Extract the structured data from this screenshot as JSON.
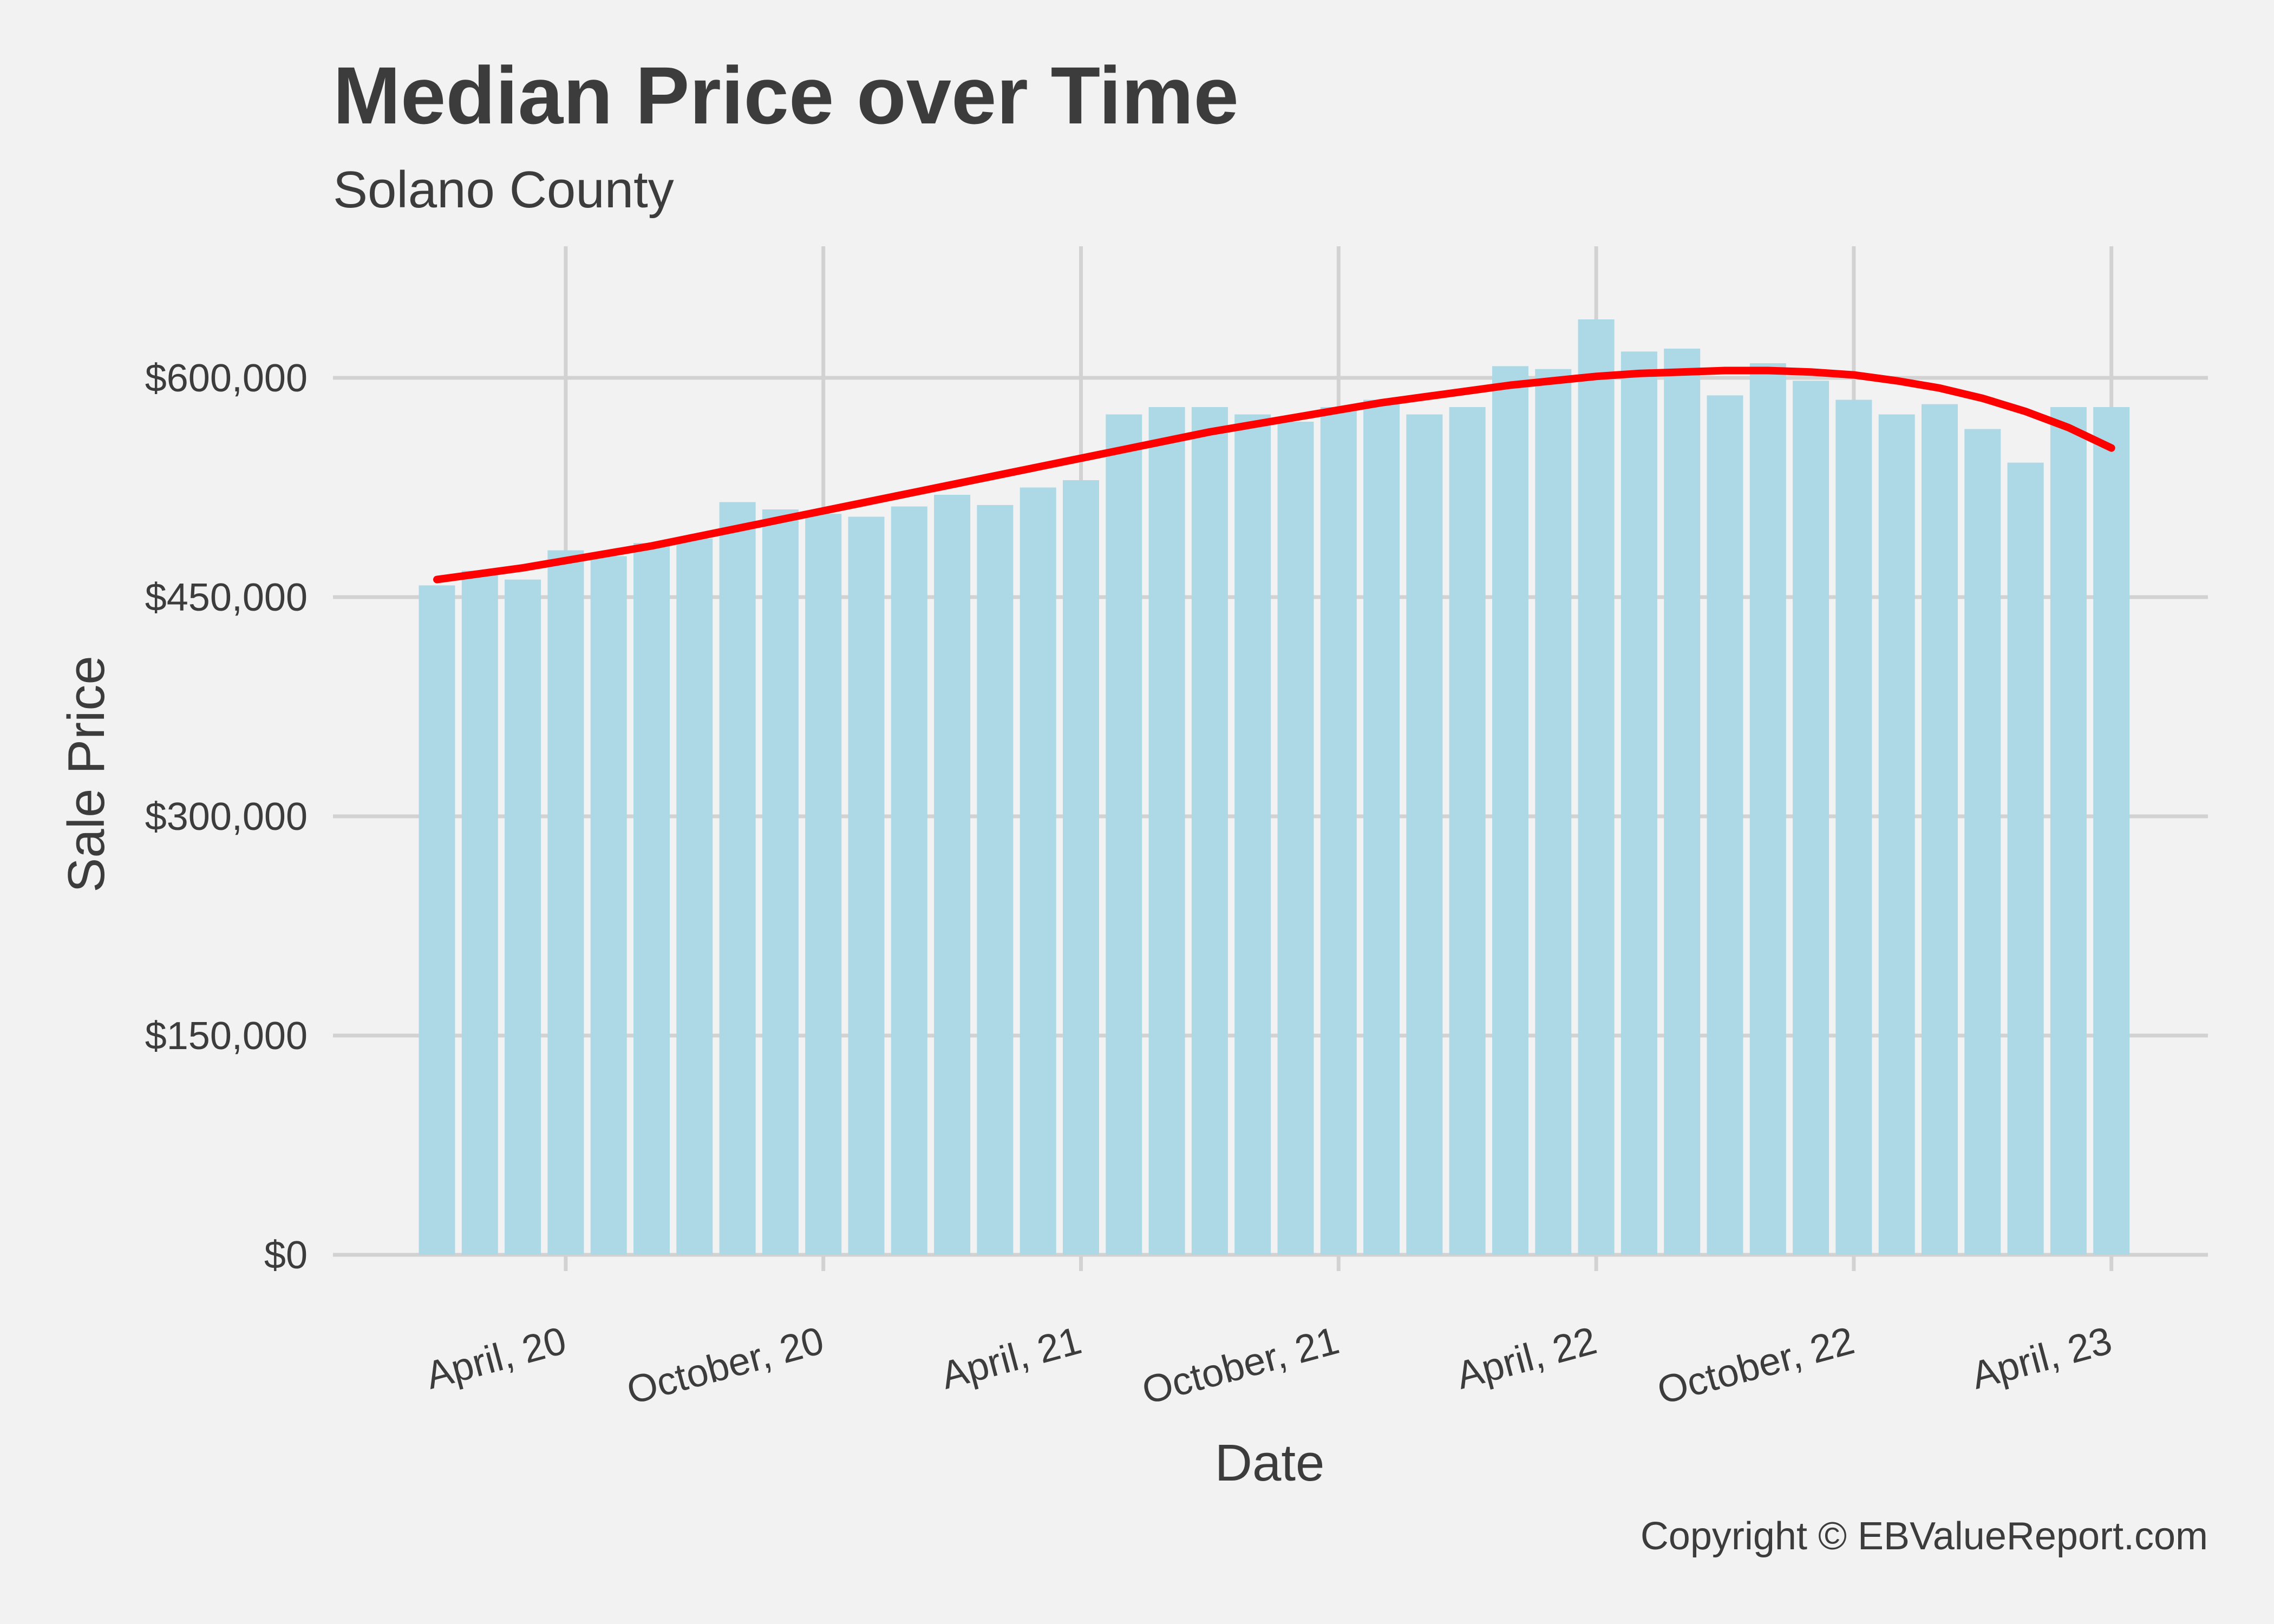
{
  "chart_data": {
    "type": "bar",
    "title": "Median Price over Time",
    "subtitle": "Solano County",
    "xlabel": "Date",
    "ylabel": "Sale Price",
    "caption": "Copyright  © EBValueReport.com",
    "ylim": [
      0,
      690000
    ],
    "y_ticks": [
      {
        "value": 0,
        "label": "$0"
      },
      {
        "value": 150000,
        "label": "$150,000"
      },
      {
        "value": 300000,
        "label": "$300,000"
      },
      {
        "value": 450000,
        "label": "$450,000"
      },
      {
        "value": 600000,
        "label": "$600,000"
      }
    ],
    "x_ticks": [
      {
        "date": "2020-04",
        "label": "April, 20"
      },
      {
        "date": "2020-10",
        "label": "October, 20"
      },
      {
        "date": "2021-04",
        "label": "April, 21"
      },
      {
        "date": "2021-10",
        "label": "October, 21"
      },
      {
        "date": "2022-04",
        "label": "April, 22"
      },
      {
        "date": "2022-10",
        "label": "October, 22"
      },
      {
        "date": "2023-04",
        "label": "April, 23"
      }
    ],
    "x": [
      "2020-01",
      "2020-02",
      "2020-03",
      "2020-04",
      "2020-05",
      "2020-06",
      "2020-07",
      "2020-08",
      "2020-09",
      "2020-10",
      "2020-11",
      "2020-12",
      "2021-01",
      "2021-02",
      "2021-03",
      "2021-04",
      "2021-05",
      "2021-06",
      "2021-07",
      "2021-08",
      "2021-09",
      "2021-10",
      "2021-11",
      "2021-12",
      "2022-01",
      "2022-02",
      "2022-03",
      "2022-04",
      "2022-05",
      "2022-06",
      "2022-07",
      "2022-08",
      "2022-09",
      "2022-10",
      "2022-11",
      "2022-12",
      "2023-01",
      "2023-02",
      "2023-03",
      "2023-04"
    ],
    "values": [
      458000,
      468000,
      462000,
      482000,
      478000,
      487000,
      490000,
      515000,
      510000,
      507000,
      505000,
      512000,
      520000,
      513000,
      525000,
      530000,
      575000,
      580000,
      580000,
      575000,
      570000,
      580000,
      585000,
      575000,
      580000,
      608000,
      606000,
      640000,
      618000,
      620000,
      588000,
      610000,
      598000,
      585000,
      575000,
      582000,
      565000,
      542000,
      580000,
      580000
    ],
    "trend": [
      462000,
      466000,
      470000,
      475000,
      480000,
      485000,
      491000,
      497000,
      503000,
      509000,
      515000,
      521000,
      527000,
      533000,
      539000,
      545000,
      551000,
      557000,
      563000,
      568000,
      573000,
      578000,
      583000,
      587000,
      591000,
      595000,
      598000,
      601000,
      603000,
      604000,
      605000,
      605000,
      604000,
      602000,
      598000,
      593000,
      586000,
      577000,
      566000,
      552000
    ],
    "bar_color": "#add8e6",
    "trend_color": "#ff0000",
    "grid": true,
    "legend": "none"
  }
}
